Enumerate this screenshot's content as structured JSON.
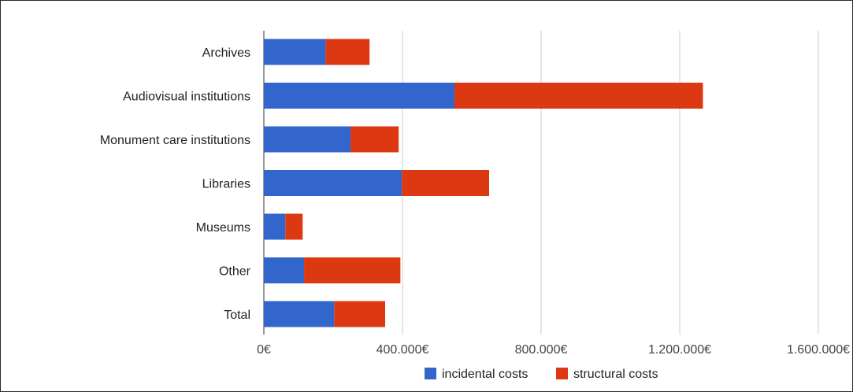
{
  "chart_data": {
    "type": "bar",
    "orientation": "horizontal",
    "stacked": true,
    "categories": [
      "Archives",
      "Audiovisual institutions",
      "Monument care institutions",
      "Libraries",
      "Museums",
      "Other",
      "Total"
    ],
    "series": [
      {
        "name": "incidental costs",
        "color": "#3366cc",
        "values": [
          178000,
          550000,
          250000,
          398000,
          62000,
          116000,
          203000
        ]
      },
      {
        "name": "structural costs",
        "color": "#dc3912",
        "values": [
          127000,
          717000,
          139000,
          252000,
          50000,
          278000,
          147000
        ]
      }
    ],
    "x_ticks": [
      0,
      400000,
      800000,
      1200000,
      1600000
    ],
    "x_tick_labels": [
      "0€",
      "400.000€",
      "800.000€",
      "1.200.000€",
      "1.600.000€"
    ],
    "xlim": [
      0,
      1600000
    ],
    "grid": true,
    "legend_position": "bottom",
    "title": "",
    "xlabel": "",
    "ylabel": ""
  }
}
